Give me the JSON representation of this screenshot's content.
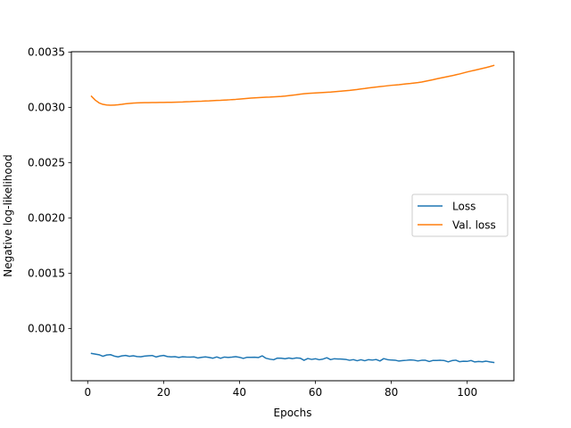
{
  "chart_data": {
    "type": "line",
    "xlabel": "Epochs",
    "ylabel": "Negative log-likelihood",
    "xlim": [
      -4.3,
      112.3
    ],
    "ylim": [
      0.000527,
      0.003503
    ],
    "x_ticks": [
      0,
      20,
      40,
      60,
      80,
      100
    ],
    "x_tick_labels": [
      "0",
      "20",
      "40",
      "60",
      "80",
      "100"
    ],
    "y_ticks": [
      0.001,
      0.0015,
      0.002,
      0.0025,
      0.003,
      0.0035
    ],
    "y_tick_labels": [
      "0.0010",
      "0.0015",
      "0.0020",
      "0.0025",
      "0.0030",
      "0.0035"
    ],
    "grid": false,
    "legend_position": "center-right",
    "series": [
      {
        "name": "Loss",
        "color": "#1f77b4",
        "x": [
          1,
          2,
          3,
          4,
          5,
          6,
          7,
          8,
          9,
          10,
          11,
          12,
          13,
          14,
          15,
          16,
          17,
          18,
          19,
          20,
          21,
          22,
          23,
          24,
          25,
          26,
          27,
          28,
          29,
          30,
          31,
          32,
          33,
          34,
          35,
          36,
          37,
          38,
          39,
          40,
          41,
          42,
          43,
          44,
          45,
          46,
          47,
          48,
          49,
          50,
          51,
          52,
          53,
          54,
          55,
          56,
          57,
          58,
          59,
          60,
          61,
          62,
          63,
          64,
          65,
          66,
          67,
          68,
          69,
          70,
          71,
          72,
          73,
          74,
          75,
          76,
          77,
          78,
          79,
          80,
          81,
          82,
          83,
          84,
          85,
          86,
          87,
          88,
          89,
          90,
          91,
          92,
          93,
          94,
          95,
          96,
          97,
          98,
          99,
          100,
          101,
          102,
          103,
          104,
          105,
          106,
          107
        ],
        "y": [
          0.000774,
          0.000768,
          0.000762,
          0.000748,
          0.00076,
          0.000763,
          0.00075,
          0.000743,
          0.000752,
          0.000756,
          0.000748,
          0.000753,
          0.000746,
          0.000744,
          0.00075,
          0.000753,
          0.000755,
          0.000742,
          0.000751,
          0.000756,
          0.000746,
          0.000743,
          0.000745,
          0.000738,
          0.000744,
          0.000742,
          0.000741,
          0.000743,
          0.000733,
          0.000739,
          0.000743,
          0.000738,
          0.000731,
          0.000742,
          0.00073,
          0.000741,
          0.000738,
          0.000741,
          0.000745,
          0.000739,
          0.000729,
          0.000739,
          0.000739,
          0.00074,
          0.000737,
          0.000752,
          0.00073,
          0.000722,
          0.000717,
          0.000732,
          0.000731,
          0.000726,
          0.000733,
          0.000727,
          0.000734,
          0.000731,
          0.000712,
          0.000728,
          0.00072,
          0.000726,
          0.000717,
          0.000723,
          0.000735,
          0.000718,
          0.000726,
          0.000724,
          0.000723,
          0.00072,
          0.000712,
          0.000718,
          0.000708,
          0.000717,
          0.000708,
          0.000718,
          0.000714,
          0.000719,
          0.000706,
          0.000727,
          0.000718,
          0.000714,
          0.000713,
          0.000705,
          0.000709,
          0.000712,
          0.000716,
          0.000713,
          0.000706,
          0.000712,
          0.000712,
          0.000701,
          0.000711,
          0.000711,
          0.000712,
          0.000709,
          0.000698,
          0.000709,
          0.000713,
          0.000699,
          0.000703,
          0.000702,
          0.00071,
          0.000697,
          0.000701,
          0.000698,
          0.000704,
          0.000697,
          0.000692
        ]
      },
      {
        "name": "Val. loss",
        "color": "#ff7f0e",
        "x": [
          1,
          2,
          3,
          4,
          5,
          6,
          7,
          8,
          9,
          10,
          11,
          12,
          13,
          14,
          15,
          16,
          17,
          18,
          19,
          20,
          21,
          22,
          23,
          24,
          25,
          26,
          27,
          28,
          29,
          30,
          31,
          32,
          33,
          34,
          35,
          36,
          37,
          38,
          39,
          40,
          41,
          42,
          43,
          44,
          45,
          46,
          47,
          48,
          49,
          50,
          51,
          52,
          53,
          54,
          55,
          56,
          57,
          58,
          59,
          60,
          61,
          62,
          63,
          64,
          65,
          66,
          67,
          68,
          69,
          70,
          71,
          72,
          73,
          74,
          75,
          76,
          77,
          78,
          79,
          80,
          81,
          82,
          83,
          84,
          85,
          86,
          87,
          88,
          89,
          90,
          91,
          92,
          93,
          94,
          95,
          96,
          97,
          98,
          99,
          100,
          101,
          102,
          103,
          104,
          105,
          106,
          107
        ],
        "y": [
          0.0031,
          0.003065,
          0.00304,
          0.003027,
          0.003021,
          0.003019,
          0.00302,
          0.003023,
          0.003027,
          0.003032,
          0.003035,
          0.003038,
          0.00304,
          0.003041,
          0.003042,
          0.003042,
          0.003043,
          0.003043,
          0.003044,
          0.003044,
          0.003045,
          0.003045,
          0.003046,
          0.003047,
          0.003048,
          0.00305,
          0.003051,
          0.003053,
          0.003054,
          0.003055,
          0.003057,
          0.003058,
          0.00306,
          0.003062,
          0.003063,
          0.003065,
          0.003067,
          0.00307,
          0.003072,
          0.003075,
          0.003078,
          0.003081,
          0.003084,
          0.003086,
          0.003088,
          0.00309,
          0.003092,
          0.003093,
          0.003095,
          0.003097,
          0.003099,
          0.003102,
          0.003106,
          0.00311,
          0.003114,
          0.003119,
          0.003123,
          0.003126,
          0.003128,
          0.00313,
          0.003132,
          0.003134,
          0.003136,
          0.003138,
          0.003141,
          0.003144,
          0.003147,
          0.00315,
          0.003153,
          0.003157,
          0.003161,
          0.003166,
          0.00317,
          0.003175,
          0.003179,
          0.003183,
          0.003187,
          0.003191,
          0.003195,
          0.003199,
          0.003202,
          0.003205,
          0.003209,
          0.003213,
          0.003216,
          0.00322,
          0.003224,
          0.003229,
          0.003236,
          0.003243,
          0.00325,
          0.003258,
          0.003265,
          0.003272,
          0.003279,
          0.003286,
          0.003294,
          0.003302,
          0.003311,
          0.00332,
          0.003328,
          0.003336,
          0.003344,
          0.003352,
          0.00336,
          0.003369,
          0.003379
        ]
      }
    ]
  }
}
